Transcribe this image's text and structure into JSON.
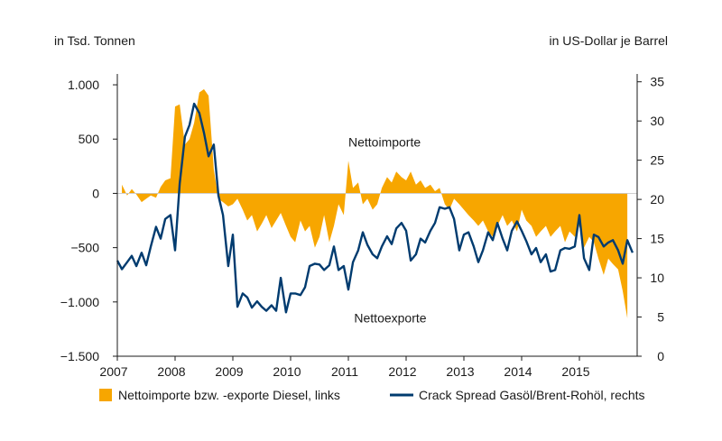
{
  "chart_data": {
    "type": "area+line",
    "left_axis_label": "in Tsd. Tonnen",
    "right_axis_label": "in US-Dollar je Barrel",
    "left_ylim": [
      -1500,
      1100
    ],
    "right_ylim": [
      0,
      36
    ],
    "left_ticks": [
      {
        "value": 1000,
        "label": "1.000"
      },
      {
        "value": 500,
        "label": "500"
      },
      {
        "value": 0,
        "label": "0"
      },
      {
        "value": -500,
        "label": "−500"
      },
      {
        "value": -1000,
        "label": "−1.000"
      },
      {
        "value": -1500,
        "label": "−1.500"
      }
    ],
    "right_ticks": [
      {
        "value": 35,
        "label": "35"
      },
      {
        "value": 30,
        "label": "30"
      },
      {
        "value": 25,
        "label": "25"
      },
      {
        "value": 20,
        "label": "20"
      },
      {
        "value": 15,
        "label": "15"
      },
      {
        "value": 10,
        "label": "10"
      },
      {
        "value": 5,
        "label": "5"
      },
      {
        "value": 0,
        "label": "0"
      }
    ],
    "x_ticks": [
      {
        "value": 2007,
        "label": "2007"
      },
      {
        "value": 2008,
        "label": "2008"
      },
      {
        "value": 2009,
        "label": "2009"
      },
      {
        "value": 2010,
        "label": "2010"
      },
      {
        "value": 2011,
        "label": "2011"
      },
      {
        "value": 2012,
        "label": "2012"
      },
      {
        "value": 2013,
        "label": "2013"
      },
      {
        "value": 2014,
        "label": "2014"
      },
      {
        "value": 2015,
        "label": "2015"
      }
    ],
    "xlim": [
      2007,
      2016
    ],
    "annotations": [
      {
        "text": "Nettoimporte",
        "x": 2011.0,
        "y": 430,
        "axis": "left"
      },
      {
        "text": "Nettoexporte",
        "x": 2011.1,
        "y": -1190,
        "axis": "left"
      }
    ],
    "legend": {
      "placement": "bottom",
      "area_label": "Nettoimporte bzw. -exporte Diesel, links",
      "line_label": "Crack Spread Gasöl/Brent-Rohöl, rechts"
    },
    "colors": {
      "area": "#F7A600",
      "line": "#003B6F",
      "axis": "#1a1a1a"
    },
    "area_series": {
      "name": "Nettoimporte bzw. -exporte Diesel, links",
      "axis": "left",
      "x": [
        2007.08,
        2007.17,
        2007.25,
        2007.33,
        2007.42,
        2007.5,
        2007.58,
        2007.67,
        2007.75,
        2007.83,
        2007.92,
        2008.0,
        2008.08,
        2008.17,
        2008.25,
        2008.33,
        2008.42,
        2008.5,
        2008.58,
        2008.67,
        2008.75,
        2008.83,
        2008.92,
        2009.0,
        2009.08,
        2009.17,
        2009.25,
        2009.33,
        2009.42,
        2009.5,
        2009.58,
        2009.67,
        2009.75,
        2009.83,
        2009.92,
        2010.0,
        2010.08,
        2010.17,
        2010.25,
        2010.33,
        2010.42,
        2010.5,
        2010.58,
        2010.67,
        2010.75,
        2010.83,
        2010.92,
        2011.0,
        2011.08,
        2011.17,
        2011.25,
        2011.33,
        2011.42,
        2011.5,
        2011.58,
        2011.67,
        2011.75,
        2011.83,
        2011.92,
        2012.0,
        2012.08,
        2012.17,
        2012.25,
        2012.33,
        2012.42,
        2012.5,
        2012.58,
        2012.67,
        2012.75,
        2012.83,
        2012.92,
        2013.0,
        2013.08,
        2013.17,
        2013.25,
        2013.33,
        2013.42,
        2013.5,
        2013.58,
        2013.67,
        2013.75,
        2013.83,
        2013.92,
        2014.0,
        2014.08,
        2014.17,
        2014.25,
        2014.33,
        2014.42,
        2014.5,
        2014.58,
        2014.67,
        2014.75,
        2014.83,
        2014.92,
        2015.0,
        2015.08,
        2015.17,
        2015.25,
        2015.33,
        2015.42,
        2015.5,
        2015.58,
        2015.67,
        2015.75,
        2015.83
      ],
      "values": [
        80,
        -20,
        40,
        -10,
        -80,
        -50,
        -20,
        -40,
        60,
        120,
        140,
        800,
        820,
        450,
        500,
        650,
        930,
        960,
        900,
        220,
        -50,
        -80,
        -120,
        -100,
        -50,
        -150,
        -250,
        -200,
        -350,
        -280,
        -200,
        -320,
        -250,
        -180,
        -300,
        -400,
        -450,
        -250,
        -350,
        -300,
        -500,
        -400,
        -200,
        -450,
        -300,
        -100,
        -200,
        300,
        50,
        100,
        -100,
        -50,
        -150,
        -100,
        50,
        150,
        100,
        200,
        150,
        120,
        200,
        80,
        120,
        50,
        80,
        20,
        50,
        -100,
        -150,
        -50,
        -100,
        -150,
        -200,
        -250,
        -300,
        -250,
        -350,
        -400,
        -300,
        -200,
        -300,
        -250,
        -350,
        -150,
        -250,
        -300,
        -400,
        -350,
        -300,
        -400,
        -350,
        -300,
        -450,
        -350,
        -400,
        -300,
        -500,
        -400,
        -450,
        -600,
        -750,
        -600,
        -650,
        -700,
        -900,
        -1150
      ]
    },
    "line_series": {
      "name": "Crack Spread Gasöl/Brent-Rohöl, rechts",
      "axis": "right",
      "x": [
        2007.0,
        2007.08,
        2007.17,
        2007.25,
        2007.33,
        2007.42,
        2007.5,
        2007.58,
        2007.67,
        2007.75,
        2007.83,
        2007.92,
        2008.0,
        2008.08,
        2008.17,
        2008.25,
        2008.33,
        2008.42,
        2008.5,
        2008.58,
        2008.67,
        2008.75,
        2008.83,
        2008.92,
        2009.0,
        2009.08,
        2009.17,
        2009.25,
        2009.33,
        2009.42,
        2009.5,
        2009.58,
        2009.67,
        2009.75,
        2009.83,
        2009.92,
        2010.0,
        2010.08,
        2010.17,
        2010.25,
        2010.33,
        2010.42,
        2010.5,
        2010.58,
        2010.67,
        2010.75,
        2010.83,
        2010.92,
        2011.0,
        2011.08,
        2011.17,
        2011.25,
        2011.33,
        2011.42,
        2011.5,
        2011.58,
        2011.67,
        2011.75,
        2011.83,
        2011.92,
        2012.0,
        2012.08,
        2012.17,
        2012.25,
        2012.33,
        2012.42,
        2012.5,
        2012.58,
        2012.67,
        2012.75,
        2012.83,
        2012.92,
        2013.0,
        2013.08,
        2013.17,
        2013.25,
        2013.33,
        2013.42,
        2013.5,
        2013.58,
        2013.67,
        2013.75,
        2013.83,
        2013.92,
        2014.0,
        2014.08,
        2014.17,
        2014.25,
        2014.33,
        2014.42,
        2014.5,
        2014.58,
        2014.67,
        2014.75,
        2014.83,
        2014.92,
        2015.0,
        2015.08,
        2015.17,
        2015.25,
        2015.33,
        2015.42,
        2015.5,
        2015.58,
        2015.67,
        2015.75,
        2015.83,
        2015.92
      ],
      "values": [
        12.2,
        11.1,
        12.0,
        12.8,
        11.5,
        13.2,
        11.6,
        14.0,
        16.5,
        15.0,
        17.5,
        18.0,
        13.5,
        22.0,
        28.0,
        29.5,
        32.2,
        31.0,
        28.5,
        25.5,
        27.0,
        20.5,
        18.0,
        11.5,
        15.5,
        6.3,
        8.0,
        7.5,
        6.2,
        7.0,
        6.3,
        5.8,
        6.5,
        5.8,
        10.0,
        5.6,
        8.0,
        8.0,
        7.8,
        8.8,
        11.5,
        11.8,
        11.7,
        11.0,
        11.6,
        14.0,
        11.0,
        11.5,
        8.5,
        12.0,
        13.5,
        15.8,
        14.2,
        13.0,
        12.5,
        14.0,
        15.3,
        14.3,
        16.3,
        17.0,
        16.0,
        12.2,
        13.0,
        15.0,
        14.5,
        16.0,
        17.0,
        19.0,
        18.8,
        19.0,
        17.5,
        13.5,
        15.5,
        15.8,
        14.0,
        12.0,
        13.5,
        15.8,
        14.8,
        17.0,
        15.0,
        13.5,
        16.0,
        17.2,
        16.0,
        14.7,
        13.0,
        13.8,
        12.0,
        13.0,
        10.8,
        11.0,
        13.5,
        13.8,
        13.7,
        14.0,
        18.0,
        12.5,
        11.0,
        15.5,
        15.2,
        14.0,
        14.5,
        14.8,
        13.5,
        11.8,
        14.8,
        13.2
      ]
    }
  }
}
